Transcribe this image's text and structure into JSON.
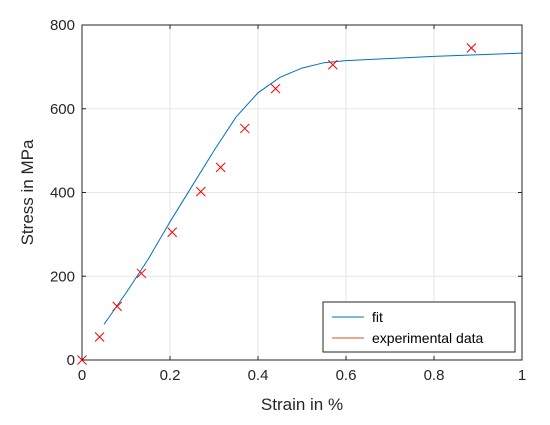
{
  "chart_data": {
    "type": "scatter",
    "title": "",
    "xlabel": "Strain in %",
    "ylabel": "Stress in MPa",
    "xlim": [
      0,
      1
    ],
    "ylim": [
      0,
      800
    ],
    "xticks": [
      0,
      0.2,
      0.4,
      0.6,
      0.8,
      1
    ],
    "xtick_labels": [
      "0",
      "0.2",
      "0.4",
      "0.6",
      "0.8",
      "1"
    ],
    "yticks": [
      0,
      200,
      400,
      600,
      800
    ],
    "ytick_labels": [
      "0",
      "200",
      "400",
      "600",
      "800"
    ],
    "grid": true,
    "legend_position": "bottom-right",
    "series": [
      {
        "name": "fit",
        "kind": "line",
        "color": "#0072BD",
        "x": [
          0.05,
          0.1,
          0.15,
          0.2,
          0.25,
          0.3,
          0.35,
          0.4,
          0.45,
          0.5,
          0.55,
          0.6,
          0.7,
          0.8,
          0.9,
          1.0
        ],
        "y": [
          85,
          160,
          240,
          330,
          415,
          500,
          580,
          638,
          675,
          697,
          710,
          715,
          720,
          725,
          729,
          733
        ]
      },
      {
        "name": "experimental data",
        "kind": "markers",
        "marker": "x",
        "color": "#FF0000",
        "legend_color": "#D95319",
        "x": [
          0.0,
          0.04,
          0.08,
          0.135,
          0.205,
          0.27,
          0.315,
          0.37,
          0.44,
          0.57,
          0.885
        ],
        "y": [
          0,
          55,
          128,
          207,
          305,
          402,
          460,
          553,
          648,
          705,
          745
        ]
      }
    ]
  }
}
